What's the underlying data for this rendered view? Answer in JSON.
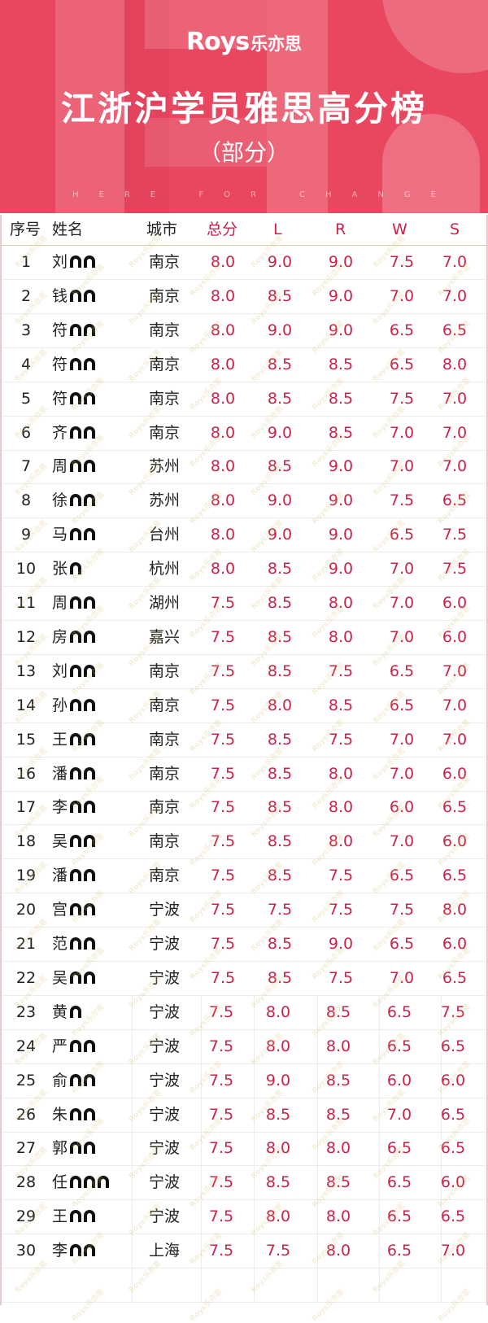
{
  "banner": {
    "logo_latin": "Roys",
    "logo_cn": "乐亦思",
    "title": "江浙沪学员雅思高分榜",
    "subtitle": "（部分）",
    "slogan": "HERE FOR CHANGE",
    "bg_color": "#e9475f"
  },
  "table": {
    "headers": [
      "序号",
      "姓名",
      "城市",
      "总分",
      "L",
      "R",
      "W",
      "S"
    ],
    "accent_color": "#c8244a",
    "watermark": "Roys乐亦思",
    "rows": [
      {
        "no": "1",
        "surname": "刘",
        "masked_chars": 2,
        "city": "南京",
        "total": "8.0",
        "L": "9.0",
        "R": "9.0",
        "W": "7.5",
        "S": "7.0"
      },
      {
        "no": "2",
        "surname": "钱",
        "masked_chars": 2,
        "city": "南京",
        "total": "8.0",
        "L": "8.5",
        "R": "9.0",
        "W": "7.0",
        "S": "7.0"
      },
      {
        "no": "3",
        "surname": "符",
        "masked_chars": 2,
        "city": "南京",
        "total": "8.0",
        "L": "9.0",
        "R": "9.0",
        "W": "6.5",
        "S": "6.5"
      },
      {
        "no": "4",
        "surname": "符",
        "masked_chars": 2,
        "city": "南京",
        "total": "8.0",
        "L": "8.5",
        "R": "8.5",
        "W": "6.5",
        "S": "8.0"
      },
      {
        "no": "5",
        "surname": "符",
        "masked_chars": 2,
        "city": "南京",
        "total": "8.0",
        "L": "8.5",
        "R": "8.5",
        "W": "7.5",
        "S": "7.0"
      },
      {
        "no": "6",
        "surname": "齐",
        "masked_chars": 2,
        "city": "南京",
        "total": "8.0",
        "L": "9.0",
        "R": "8.5",
        "W": "7.0",
        "S": "7.0"
      },
      {
        "no": "7",
        "surname": "周",
        "masked_chars": 2,
        "city": "苏州",
        "total": "8.0",
        "L": "8.5",
        "R": "9.0",
        "W": "7.0",
        "S": "7.0"
      },
      {
        "no": "8",
        "surname": "徐",
        "masked_chars": 2,
        "city": "苏州",
        "total": "8.0",
        "L": "9.0",
        "R": "9.0",
        "W": "7.5",
        "S": "6.5"
      },
      {
        "no": "9",
        "surname": "马",
        "masked_chars": 2,
        "city": "台州",
        "total": "8.0",
        "L": "9.0",
        "R": "9.0",
        "W": "6.5",
        "S": "7.5"
      },
      {
        "no": "10",
        "surname": "张",
        "masked_chars": 1,
        "city": "杭州",
        "total": "8.0",
        "L": "8.5",
        "R": "9.0",
        "W": "7.0",
        "S": "7.5"
      },
      {
        "no": "11",
        "surname": "周",
        "masked_chars": 2,
        "city": "湖州",
        "total": "7.5",
        "L": "8.5",
        "R": "8.0",
        "W": "7.0",
        "S": "6.0"
      },
      {
        "no": "12",
        "surname": "房",
        "masked_chars": 2,
        "city": "嘉兴",
        "total": "7.5",
        "L": "8.5",
        "R": "8.0",
        "W": "7.0",
        "S": "6.0"
      },
      {
        "no": "13",
        "surname": "刘",
        "masked_chars": 2,
        "city": "南京",
        "total": "7.5",
        "L": "8.5",
        "R": "7.5",
        "W": "6.5",
        "S": "7.0"
      },
      {
        "no": "14",
        "surname": "孙",
        "masked_chars": 2,
        "city": "南京",
        "total": "7.5",
        "L": "8.0",
        "R": "8.5",
        "W": "6.5",
        "S": "7.0"
      },
      {
        "no": "15",
        "surname": "王",
        "masked_chars": 2,
        "city": "南京",
        "total": "7.5",
        "L": "8.5",
        "R": "7.5",
        "W": "7.0",
        "S": "7.0"
      },
      {
        "no": "16",
        "surname": "潘",
        "masked_chars": 2,
        "city": "南京",
        "total": "7.5",
        "L": "8.5",
        "R": "8.0",
        "W": "7.0",
        "S": "6.0"
      },
      {
        "no": "17",
        "surname": "李",
        "masked_chars": 2,
        "city": "南京",
        "total": "7.5",
        "L": "8.5",
        "R": "8.0",
        "W": "6.0",
        "S": "6.5"
      },
      {
        "no": "18",
        "surname": "吴",
        "masked_chars": 2,
        "city": "南京",
        "total": "7.5",
        "L": "8.5",
        "R": "8.0",
        "W": "7.0",
        "S": "6.0"
      },
      {
        "no": "19",
        "surname": "潘",
        "masked_chars": 2,
        "city": "南京",
        "total": "7.5",
        "L": "8.5",
        "R": "7.5",
        "W": "6.5",
        "S": "6.5"
      },
      {
        "no": "20",
        "surname": "宫",
        "masked_chars": 2,
        "city": "宁波",
        "total": "7.5",
        "L": "7.5",
        "R": "7.5",
        "W": "7.5",
        "S": "8.0"
      },
      {
        "no": "21",
        "surname": "范",
        "masked_chars": 2,
        "city": "宁波",
        "total": "7.5",
        "L": "8.5",
        "R": "9.0",
        "W": "6.5",
        "S": "6.0"
      },
      {
        "no": "22",
        "surname": "吴",
        "masked_chars": 2,
        "city": "宁波",
        "total": "7.5",
        "L": "8.5",
        "R": "7.5",
        "W": "7.0",
        "S": "6.5"
      },
      {
        "no": "23",
        "surname": "黄",
        "masked_chars": 1,
        "city": "宁波",
        "total": "7.5",
        "L": "8.0",
        "R": "8.5",
        "W": "6.5",
        "S": "7.5"
      },
      {
        "no": "24",
        "surname": "严",
        "masked_chars": 2,
        "city": "宁波",
        "total": "7.5",
        "L": "8.0",
        "R": "8.0",
        "W": "6.5",
        "S": "6.5"
      },
      {
        "no": "25",
        "surname": "俞",
        "masked_chars": 2,
        "city": "宁波",
        "total": "7.5",
        "L": "9.0",
        "R": "8.5",
        "W": "6.0",
        "S": "6.0"
      },
      {
        "no": "26",
        "surname": "朱",
        "masked_chars": 2,
        "city": "宁波",
        "total": "7.5",
        "L": "8.5",
        "R": "8.5",
        "W": "7.0",
        "S": "6.5"
      },
      {
        "no": "27",
        "surname": "郭",
        "masked_chars": 2,
        "city": "宁波",
        "total": "7.5",
        "L": "8.0",
        "R": "8.0",
        "W": "6.5",
        "S": "6.5"
      },
      {
        "no": "28",
        "surname": "任",
        "masked_chars": 3,
        "city": "宁波",
        "total": "7.5",
        "L": "8.5",
        "R": "8.5",
        "W": "6.5",
        "S": "6.0"
      },
      {
        "no": "29",
        "surname": "王",
        "masked_chars": 2,
        "city": "宁波",
        "total": "7.5",
        "L": "8.0",
        "R": "8.0",
        "W": "6.5",
        "S": "6.5"
      },
      {
        "no": "30",
        "surname": "李",
        "masked_chars": 2,
        "city": "上海",
        "total": "7.5",
        "L": "7.5",
        "R": "8.0",
        "W": "6.5",
        "S": "7.0"
      }
    ]
  }
}
